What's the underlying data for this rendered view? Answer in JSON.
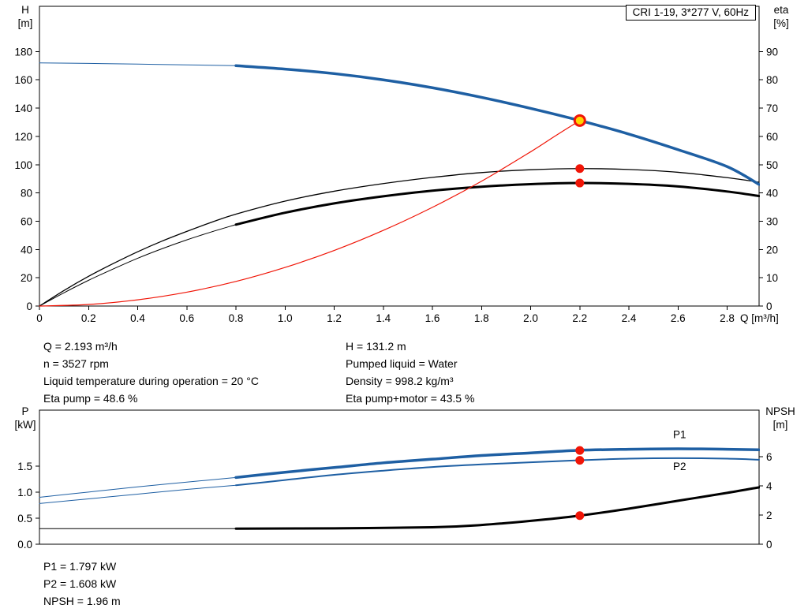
{
  "title_box": {
    "label": "CRI 1-19, 3*277 V, 60Hz"
  },
  "colors": {
    "blue": "#1e5fa3",
    "black": "#000000",
    "red": "#f01507",
    "duty_fill": "#ffd400"
  },
  "info_top": {
    "col1": [
      "Q = 2.193 m³/h",
      "n = 3527 rpm",
      "Liquid temperature during operation = 20 °C",
      "Eta pump = 48.6 %"
    ],
    "col2": [
      "H = 131.2 m",
      "Pumped liquid = Water",
      "Density = 998.2 kg/m³",
      "Eta pump+motor = 43.5 %"
    ]
  },
  "info_bottom": [
    "P1 = 1.797 kW",
    "P2 = 1.608 kW",
    "NPSH = 1.96 m"
  ],
  "chart_data": [
    {
      "type": "line",
      "name": "hq-eta-chart",
      "x_axis": {
        "label": "Q [m³/h]",
        "range": [
          0,
          2.93
        ],
        "ticks": [
          {
            "v": 0,
            "l": "0"
          },
          {
            "v": 0.2,
            "l": "0.2"
          },
          {
            "v": 0.4,
            "l": "0.4"
          },
          {
            "v": 0.6,
            "l": "0.6"
          },
          {
            "v": 0.8,
            "l": "0.8"
          },
          {
            "v": 1.0,
            "l": "1.0"
          },
          {
            "v": 1.2,
            "l": "1.2"
          },
          {
            "v": 1.4,
            "l": "1.4"
          },
          {
            "v": 1.6,
            "l": "1.6"
          },
          {
            "v": 1.8,
            "l": "1.8"
          },
          {
            "v": 2.0,
            "l": "2.0"
          },
          {
            "v": 2.2,
            "l": "2.2"
          },
          {
            "v": 2.4,
            "l": "2.4"
          },
          {
            "v": 2.6,
            "l": "2.6"
          },
          {
            "v": 2.8,
            "l": "2.8"
          }
        ]
      },
      "y_left": {
        "title": [
          "H",
          "[m]"
        ],
        "range": [
          0,
          212
        ],
        "ticks": [
          {
            "v": 0,
            "l": "0"
          },
          {
            "v": 20,
            "l": "20"
          },
          {
            "v": 40,
            "l": "40"
          },
          {
            "v": 60,
            "l": "60"
          },
          {
            "v": 80,
            "l": "80"
          },
          {
            "v": 100,
            "l": "100"
          },
          {
            "v": 120,
            "l": "120"
          },
          {
            "v": 140,
            "l": "140"
          },
          {
            "v": 160,
            "l": "160"
          },
          {
            "v": 180,
            "l": "180"
          }
        ]
      },
      "y_right": {
        "title": [
          "eta",
          "[%]"
        ],
        "range": [
          0,
          106
        ],
        "ticks": [
          {
            "v": 0,
            "l": "0"
          },
          {
            "v": 10,
            "l": "10"
          },
          {
            "v": 20,
            "l": "20"
          },
          {
            "v": 30,
            "l": "30"
          },
          {
            "v": 40,
            "l": "40"
          },
          {
            "v": 50,
            "l": "50"
          },
          {
            "v": 60,
            "l": "60"
          },
          {
            "v": 70,
            "l": "70"
          },
          {
            "v": 80,
            "l": "80"
          },
          {
            "v": 90,
            "l": "90"
          }
        ]
      },
      "series": [
        {
          "name": "head-curve-low",
          "axis": "left",
          "color": "blue",
          "width": 1,
          "points": [
            [
              0,
              172
            ],
            [
              0.2,
              171.6
            ],
            [
              0.4,
              171.1
            ],
            [
              0.6,
              170.6
            ],
            [
              0.8,
              170
            ]
          ]
        },
        {
          "name": "eta-pump-curve",
          "axis": "right",
          "color": "black",
          "width": 1.3,
          "points": [
            [
              0,
              0
            ],
            [
              0.1,
              5.5
            ],
            [
              0.2,
              10.5
            ],
            [
              0.3,
              15
            ],
            [
              0.4,
              19.2
            ],
            [
              0.5,
              23
            ],
            [
              0.6,
              26.4
            ],
            [
              0.7,
              29.6
            ],
            [
              0.8,
              32.5
            ],
            [
              1.0,
              37.1
            ],
            [
              1.2,
              40.6
            ],
            [
              1.4,
              43.3
            ],
            [
              1.6,
              45.5
            ],
            [
              1.8,
              47.2
            ],
            [
              2.0,
              48.2
            ],
            [
              2.2,
              48.6
            ],
            [
              2.4,
              48.3
            ],
            [
              2.6,
              47.3
            ],
            [
              2.8,
              45.4
            ],
            [
              2.93,
              43.8
            ]
          ]
        },
        {
          "name": "eta-pump-motor-curve-low",
          "axis": "right",
          "color": "black",
          "width": 1,
          "points": [
            [
              0,
              0
            ],
            [
              0.1,
              4.7
            ],
            [
              0.2,
              9.1
            ],
            [
              0.3,
              13.1
            ],
            [
              0.4,
              16.9
            ],
            [
              0.5,
              20.3
            ],
            [
              0.6,
              23.4
            ],
            [
              0.7,
              26.2
            ],
            [
              0.8,
              28.8
            ]
          ]
        },
        {
          "name": "eta-pump-motor-curve",
          "axis": "right",
          "color": "black",
          "width": 3,
          "points": [
            [
              0.8,
              28.8
            ],
            [
              1.0,
              33
            ],
            [
              1.2,
              36.3
            ],
            [
              1.4,
              38.8
            ],
            [
              1.6,
              40.8
            ],
            [
              1.8,
              42.2
            ],
            [
              2.0,
              43.1
            ],
            [
              2.2,
              43.5
            ],
            [
              2.4,
              43.2
            ],
            [
              2.6,
              42.3
            ],
            [
              2.8,
              40.5
            ],
            [
              2.93,
              38.9
            ]
          ]
        },
        {
          "name": "system-curve",
          "axis": "left",
          "color": "red",
          "width": 1.2,
          "points": [
            [
              0,
              0
            ],
            [
              0.2,
              1.1
            ],
            [
              0.4,
              4.4
            ],
            [
              0.6,
              9.8
            ],
            [
              0.8,
              17.4
            ],
            [
              1.0,
              27.3
            ],
            [
              1.2,
              39.3
            ],
            [
              1.4,
              53.5
            ],
            [
              1.6,
              69.8
            ],
            [
              1.8,
              88.3
            ],
            [
              2.0,
              109.1
            ],
            [
              2.1,
              120.3
            ],
            [
              2.2,
              131.2
            ]
          ]
        },
        {
          "name": "head-curve",
          "axis": "left",
          "color": "blue",
          "width": 3.5,
          "points": [
            [
              0.8,
              170
            ],
            [
              1.0,
              167.6
            ],
            [
              1.2,
              164.4
            ],
            [
              1.4,
              160
            ],
            [
              1.6,
              154.4
            ],
            [
              1.8,
              147.6
            ],
            [
              2.0,
              139.8
            ],
            [
              2.2,
              131.2
            ],
            [
              2.4,
              121.6
            ],
            [
              2.6,
              110.6
            ],
            [
              2.8,
              98.6
            ],
            [
              2.93,
              86
            ]
          ]
        }
      ],
      "markers": [
        {
          "name": "eta-pump-motor-point",
          "x": 2.2,
          "y": 43.5,
          "axis": "right",
          "r": 5.5,
          "fill": "red"
        },
        {
          "name": "eta-pump-point",
          "x": 2.2,
          "y": 48.6,
          "axis": "right",
          "r": 5.5,
          "fill": "red"
        },
        {
          "name": "duty-point",
          "x": 2.2,
          "y": 131.2,
          "axis": "left",
          "r": 6.5,
          "fill": "duty_fill",
          "stroke": "red",
          "stroke_width": 3
        }
      ],
      "annotations": []
    },
    {
      "type": "line",
      "name": "power-npsh-chart",
      "x_axis": {
        "label": "",
        "range": [
          0,
          2.93
        ],
        "ticks": []
      },
      "y_left": {
        "title": [
          "P",
          "[kW]"
        ],
        "range": [
          0,
          2.57
        ],
        "ticks": [
          {
            "v": 0,
            "l": "0.0"
          },
          {
            "v": 0.5,
            "l": "0.5"
          },
          {
            "v": 1.0,
            "l": "1.0"
          },
          {
            "v": 1.5,
            "l": "1.5"
          }
        ]
      },
      "y_right": {
        "title": [
          "NPSH",
          "[m]"
        ],
        "range": [
          0,
          9.19
        ],
        "ticks": [
          {
            "v": 0,
            "l": "0"
          },
          {
            "v": 2,
            "l": "2"
          },
          {
            "v": 4,
            "l": "4"
          },
          {
            "v": 6,
            "l": "6"
          }
        ]
      },
      "series": [
        {
          "name": "p1-curve-low",
          "axis": "left",
          "color": "blue",
          "width": 1,
          "points": [
            [
              0,
              0.9
            ],
            [
              0.2,
              1.0
            ],
            [
              0.4,
              1.1
            ],
            [
              0.6,
              1.19
            ],
            [
              0.8,
              1.28
            ]
          ]
        },
        {
          "name": "p1-curve",
          "axis": "left",
          "color": "blue",
          "width": 3.5,
          "points": [
            [
              0.8,
              1.28
            ],
            [
              1.0,
              1.38
            ],
            [
              1.2,
              1.47
            ],
            [
              1.4,
              1.56
            ],
            [
              1.6,
              1.63
            ],
            [
              1.8,
              1.7
            ],
            [
              2.0,
              1.75
            ],
            [
              2.2,
              1.8
            ],
            [
              2.4,
              1.82
            ],
            [
              2.6,
              1.83
            ],
            [
              2.8,
              1.82
            ],
            [
              2.93,
              1.81
            ]
          ]
        },
        {
          "name": "p2-curve-low",
          "axis": "left",
          "color": "blue",
          "width": 1,
          "points": [
            [
              0,
              0.78
            ],
            [
              0.2,
              0.87
            ],
            [
              0.4,
              0.96
            ],
            [
              0.6,
              1.05
            ],
            [
              0.8,
              1.13
            ]
          ]
        },
        {
          "name": "p2-curve",
          "axis": "left",
          "color": "blue",
          "width": 2,
          "points": [
            [
              0.8,
              1.13
            ],
            [
              1.0,
              1.23
            ],
            [
              1.2,
              1.33
            ],
            [
              1.4,
              1.41
            ],
            [
              1.6,
              1.48
            ],
            [
              1.8,
              1.53
            ],
            [
              2.0,
              1.57
            ],
            [
              2.2,
              1.61
            ],
            [
              2.4,
              1.64
            ],
            [
              2.6,
              1.65
            ],
            [
              2.8,
              1.64
            ],
            [
              2.93,
              1.62
            ]
          ]
        },
        {
          "name": "npsh-curve-low",
          "axis": "right",
          "color": "black",
          "width": 1,
          "points": [
            [
              0,
              1.07
            ],
            [
              0.4,
              1.07
            ],
            [
              0.8,
              1.07
            ]
          ]
        },
        {
          "name": "npsh-curve",
          "axis": "right",
          "color": "black",
          "width": 3,
          "points": [
            [
              0.8,
              1.07
            ],
            [
              1.2,
              1.09
            ],
            [
              1.6,
              1.16
            ],
            [
              1.8,
              1.32
            ],
            [
              2.0,
              1.6
            ],
            [
              2.2,
              1.96
            ],
            [
              2.4,
              2.44
            ],
            [
              2.6,
              2.98
            ],
            [
              2.8,
              3.52
            ],
            [
              2.93,
              3.9
            ]
          ]
        }
      ],
      "markers": [
        {
          "name": "p1-point",
          "x": 2.2,
          "y": 1.797,
          "axis": "left",
          "r": 5.5,
          "fill": "red"
        },
        {
          "name": "p2-point",
          "x": 2.2,
          "y": 1.608,
          "axis": "left",
          "r": 5.5,
          "fill": "red"
        },
        {
          "name": "npsh-point",
          "x": 2.2,
          "y": 1.96,
          "axis": "right",
          "r": 5.5,
          "fill": "red"
        }
      ],
      "annotations": [
        {
          "name": "p1-label",
          "text": "P1",
          "x": 2.58,
          "y": 2.03,
          "axis": "left",
          "color": "blue"
        },
        {
          "name": "p2-label",
          "text": "P2",
          "x": 2.58,
          "y": 1.42,
          "axis": "left",
          "color": "blue"
        }
      ]
    }
  ]
}
